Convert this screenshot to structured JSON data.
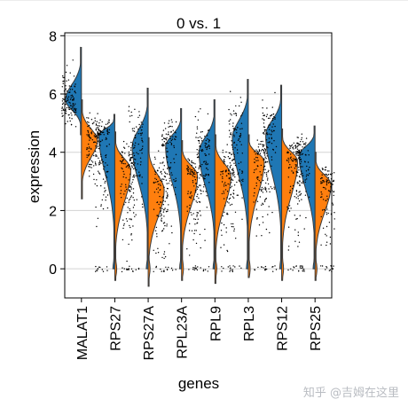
{
  "chart_data": {
    "type": "split-violin",
    "title": "0 vs. 1",
    "xlabel": "genes",
    "ylabel": "expression",
    "ylim": [
      -1,
      8.1
    ],
    "yticks": [
      0,
      2,
      4,
      6,
      8
    ],
    "grid": "horizontal",
    "categories": [
      "MALAT1",
      "RPS27",
      "RPS27A",
      "RPL23A",
      "RPL9",
      "RPL3",
      "RPS12",
      "RPS25"
    ],
    "series": [
      {
        "color": "#1f77b4",
        "min": [
          4.6,
          0,
          0,
          0,
          0,
          0,
          0,
          0
        ],
        "max": [
          7.6,
          5.3,
          6.2,
          5.5,
          5.8,
          6.5,
          6.3,
          4.9
        ],
        "mode": [
          5.8,
          4.6,
          4.2,
          4.2,
          4.0,
          4.5,
          4.6,
          3.9
        ]
      },
      {
        "color": "#ff7f0e",
        "min": [
          2.4,
          -0.4,
          -0.6,
          -0.4,
          -0.5,
          -0.3,
          -0.4,
          -0.4
        ],
        "max": [
          5.8,
          4.7,
          4.5,
          4.4,
          4.6,
          4.6,
          4.8,
          4.0
        ],
        "mode": [
          4.4,
          3.4,
          2.7,
          3.2,
          3.2,
          3.7,
          3.7,
          2.9
        ]
      }
    ]
  },
  "watermark": "知乎 @吉姆在这里"
}
